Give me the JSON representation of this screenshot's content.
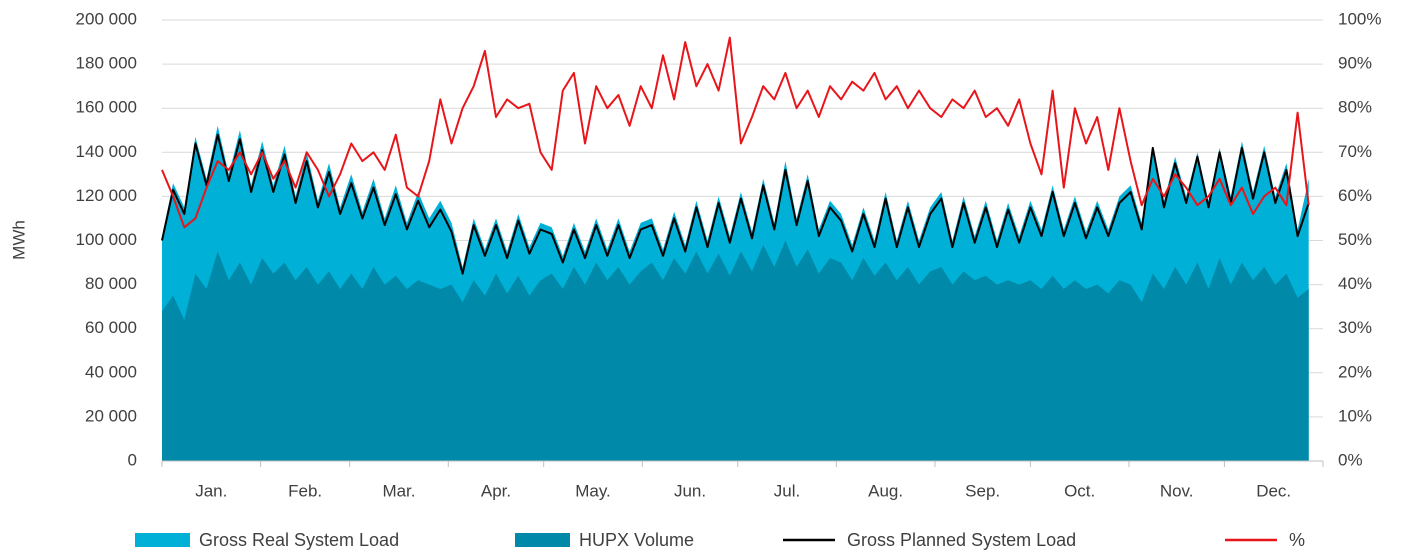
{
  "chart_data": {
    "type": "area_line",
    "y_label": "MWh",
    "x": [
      0,
      3.5,
      7,
      10.5,
      14,
      17.5,
      21,
      24.5,
      28,
      31.5,
      35,
      38.5,
      42,
      45.5,
      49,
      52.5,
      56,
      59.5,
      63,
      66.5,
      70,
      73.5,
      77,
      80.5,
      84,
      87.5,
      91,
      94.5,
      98,
      101.5,
      105,
      108.5,
      112,
      115.5,
      119,
      122.5,
      126,
      129.5,
      133,
      136.5,
      140,
      143.5,
      147,
      150.5,
      154,
      157.5,
      161,
      164.5,
      168,
      171.5,
      175,
      178.5,
      182,
      185.5,
      189,
      192.5,
      196,
      199.5,
      203,
      206.5,
      210,
      213.5,
      217,
      220.5,
      224,
      227.5,
      231,
      234.5,
      238,
      241.5,
      245,
      248.5,
      252,
      255.5,
      259,
      262.5,
      266,
      269.5,
      273,
      276.5,
      280,
      283.5,
      287,
      290.5,
      294,
      297.5,
      301,
      304.5,
      308,
      311.5,
      315,
      318.5,
      322,
      325.5,
      329,
      332.5,
      336,
      339.5,
      343,
      346.5,
      350,
      353.5,
      357,
      360.5
    ],
    "xlim": [
      0,
      365
    ],
    "xticks": [
      0,
      31,
      59,
      90,
      120,
      151,
      181,
      212,
      243,
      273,
      304,
      334,
      365
    ],
    "month_labels": [
      "Jan.",
      "Feb.",
      "Mar.",
      "Apr.",
      "May.",
      "Jun.",
      "Jul.",
      "Aug.",
      "Sep.",
      "Oct.",
      "Nov.",
      "Dec."
    ],
    "ylim": [
      0,
      200000
    ],
    "yticks": [
      0,
      {
        "value": 20000,
        "label": "20 000"
      },
      {
        "value": 40000,
        "label": "40 000"
      },
      {
        "value": 60000,
        "label": "60 000"
      },
      {
        "value": 80000,
        "label": "80 000"
      },
      {
        "value": 100000,
        "label": "100 000"
      },
      {
        "value": 120000,
        "label": "120 000"
      },
      {
        "value": 140000,
        "label": "140 000"
      },
      {
        "value": 160000,
        "label": "160 000"
      },
      {
        "value": 180000,
        "label": "180 000"
      },
      {
        "value": 200000,
        "label": "200 000"
      }
    ],
    "y2lim": [
      0,
      100
    ],
    "y2ticks": [
      {
        "value": 0,
        "label": "0%"
      },
      {
        "value": 10,
        "label": "10%"
      },
      {
        "value": 20,
        "label": "20%"
      },
      {
        "value": 30,
        "label": "30%"
      },
      {
        "value": 40,
        "label": "40%"
      },
      {
        "value": 50,
        "label": "50%"
      },
      {
        "value": 60,
        "label": "60%"
      },
      {
        "value": 70,
        "label": "70%"
      },
      {
        "value": 80,
        "label": "80%"
      },
      {
        "value": 90,
        "label": "90%"
      },
      {
        "value": 100,
        "label": "100%"
      }
    ],
    "grid": true,
    "series": [
      {
        "name": "Gross Real System Load",
        "kind": "area",
        "color": "#00b0d6",
        "values": [
          102000,
          126000,
          115000,
          147000,
          128000,
          152000,
          130000,
          150000,
          125000,
          145000,
          125000,
          143000,
          120000,
          140000,
          118000,
          135000,
          115000,
          130000,
          113000,
          128000,
          110000,
          125000,
          108000,
          122000,
          110000,
          118000,
          108000,
          88000,
          110000,
          96000,
          110000,
          95000,
          112000,
          97000,
          108000,
          106000,
          93000,
          108000,
          95000,
          110000,
          96000,
          110000,
          95000,
          108000,
          110000,
          96000,
          113000,
          98000,
          118000,
          100000,
          120000,
          102000,
          122000,
          104000,
          128000,
          108000,
          136000,
          110000,
          130000,
          105000,
          118000,
          112000,
          98000,
          115000,
          100000,
          122000,
          100000,
          118000,
          100000,
          115000,
          122000,
          100000,
          120000,
          102000,
          118000,
          100000,
          117000,
          102000,
          118000,
          105000,
          125000,
          105000,
          120000,
          104000,
          118000,
          105000,
          120000,
          125000,
          108000,
          140000,
          118000,
          138000,
          120000,
          140000,
          118000,
          142000,
          120000,
          145000,
          122000,
          143000,
          120000,
          135000,
          105000,
          128000
        ]
      },
      {
        "name": "HUPX Volume",
        "kind": "area",
        "color": "#0089a8",
        "values": [
          68000,
          75000,
          64000,
          85000,
          78000,
          95000,
          82000,
          90000,
          80000,
          92000,
          85000,
          90000,
          82000,
          88000,
          80000,
          86000,
          78000,
          85000,
          78000,
          88000,
          80000,
          84000,
          78000,
          82000,
          80000,
          78000,
          80000,
          72000,
          82000,
          75000,
          85000,
          76000,
          84000,
          75000,
          82000,
          85000,
          78000,
          88000,
          80000,
          90000,
          82000,
          88000,
          80000,
          86000,
          90000,
          82000,
          92000,
          85000,
          95000,
          85000,
          94000,
          84000,
          95000,
          86000,
          98000,
          88000,
          100000,
          88000,
          96000,
          85000,
          92000,
          90000,
          82000,
          92000,
          84000,
          90000,
          82000,
          88000,
          80000,
          86000,
          88000,
          80000,
          86000,
          82000,
          84000,
          80000,
          82000,
          80000,
          82000,
          78000,
          84000,
          78000,
          82000,
          78000,
          80000,
          76000,
          82000,
          80000,
          72000,
          85000,
          78000,
          88000,
          80000,
          90000,
          78000,
          92000,
          80000,
          90000,
          82000,
          88000,
          80000,
          85000,
          74000,
          78000
        ]
      },
      {
        "name": "Gross Planned System Load",
        "kind": "line",
        "color": "#000000",
        "values": [
          100000,
          123000,
          112000,
          144000,
          125000,
          148000,
          127000,
          146000,
          122000,
          141000,
          122000,
          139000,
          117000,
          136000,
          115000,
          131000,
          112000,
          126000,
          110000,
          124000,
          107000,
          121000,
          105000,
          118000,
          106000,
          114000,
          104000,
          85000,
          107000,
          93000,
          107000,
          92000,
          109000,
          94000,
          105000,
          103000,
          90000,
          105000,
          92000,
          107000,
          93000,
          107000,
          92000,
          105000,
          107000,
          93000,
          110000,
          95000,
          115000,
          97000,
          117000,
          99000,
          119000,
          101000,
          125000,
          105000,
          132000,
          107000,
          127000,
          102000,
          115000,
          109000,
          95000,
          112000,
          97000,
          119000,
          97000,
          115000,
          97000,
          112000,
          119000,
          97000,
          117000,
          99000,
          115000,
          97000,
          114000,
          99000,
          115000,
          102000,
          122000,
          102000,
          117000,
          101000,
          115000,
          102000,
          117000,
          122000,
          105000,
          142000,
          115000,
          135000,
          117000,
          138000,
          115000,
          140000,
          117000,
          142000,
          119000,
          140000,
          117000,
          132000,
          102000,
          117000
        ]
      },
      {
        "name": "%",
        "kind": "line",
        "axis": "y2",
        "color": "#e8161b",
        "values": [
          66,
          60,
          53,
          55,
          62,
          68,
          66,
          70,
          65,
          70,
          64,
          68,
          62,
          70,
          66,
          60,
          65,
          72,
          68,
          70,
          66,
          74,
          62,
          60,
          68,
          82,
          72,
          80,
          85,
          93,
          78,
          82,
          80,
          81,
          70,
          66,
          84,
          88,
          72,
          85,
          80,
          83,
          76,
          85,
          80,
          92,
          82,
          95,
          85,
          90,
          84,
          96,
          72,
          78,
          85,
          82,
          88,
          80,
          84,
          78,
          85,
          82,
          86,
          84,
          88,
          82,
          85,
          80,
          84,
          80,
          78,
          82,
          80,
          84,
          78,
          80,
          76,
          82,
          72,
          65,
          84,
          62,
          80,
          72,
          78,
          66,
          80,
          68,
          58,
          64,
          60,
          65,
          62,
          58,
          60,
          64,
          58,
          62,
          56,
          60,
          62,
          58,
          79,
          58
        ]
      }
    ]
  }
}
